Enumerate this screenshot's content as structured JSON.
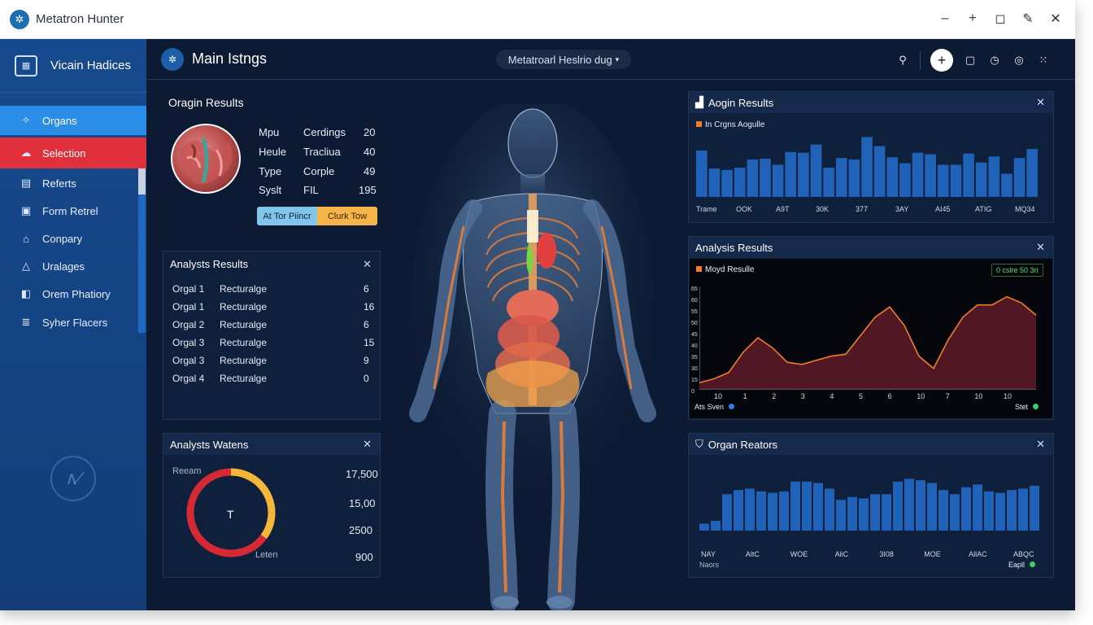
{
  "window": {
    "title": "Metatron Hunter"
  },
  "sidebar": {
    "header_label": "Vicain Hadices",
    "items": [
      {
        "label": "Organs",
        "icon": "organs-icon",
        "state": "active"
      },
      {
        "label": "Selection",
        "icon": "cloud-icon",
        "state": "selected"
      },
      {
        "label": "Referts",
        "icon": "document-icon",
        "state": ""
      },
      {
        "label": "Form Retrel",
        "icon": "form-icon",
        "state": ""
      },
      {
        "label": "Conpary",
        "icon": "company-icon",
        "state": ""
      },
      {
        "label": "Uralages",
        "icon": "bell-icon",
        "state": ""
      },
      {
        "label": "Orem Phatiory",
        "icon": "clipboard-icon",
        "state": ""
      },
      {
        "label": "Syher Flacers",
        "icon": "stack-icon",
        "state": ""
      }
    ]
  },
  "header": {
    "title": "Main Istngs",
    "dropdown_value": "Metatroarl Heslrio dug"
  },
  "organ_results": {
    "title": "Oragin Results",
    "rows": [
      {
        "a": "Mpu",
        "b": "Cerdings",
        "c": "20"
      },
      {
        "a": "Heule",
        "b": "Tracliua",
        "c": "40"
      },
      {
        "a": "Type",
        "b": "Corple",
        "c": "49"
      },
      {
        "a": "Syslt",
        "b": "FIL",
        "c": "195"
      }
    ],
    "button_a": "At Tor Piincr",
    "button_b": "Clurk Tow"
  },
  "analysis_results_left": {
    "title": "Analysts Results",
    "rows": [
      {
        "organ": "Orgal 1",
        "type": "Recturalge",
        "value": "6"
      },
      {
        "organ": "Orgal 1",
        "type": "Recturalge",
        "value": "16"
      },
      {
        "organ": "Orgal 2",
        "type": "Recturalge",
        "value": "6"
      },
      {
        "organ": "Orgal 3",
        "type": "Recturalge",
        "value": "15"
      },
      {
        "organ": "Orgal 3",
        "type": "Recturalge",
        "value": "9"
      },
      {
        "organ": "Orgal 4",
        "type": "Recturalge",
        "value": "0"
      }
    ]
  },
  "analysis_watens": {
    "title": "Analysts Watens",
    "top_label": "Reeam",
    "bottom_label": "Leten",
    "center": "T",
    "values": [
      "17,500",
      "15,00",
      "2500",
      "900"
    ],
    "gauge": {
      "yellow": 0.35,
      "red": 0.65
    }
  },
  "aogin_results": {
    "title": "Aogin Results",
    "legend": "In Crgns Aogulle",
    "x_labels": [
      "Trame",
      "OOK",
      "A9T",
      "30K",
      "377",
      "3AY",
      "AI45",
      "ATIG",
      "MQ34"
    ],
    "colors": {
      "bar": "#1f62b8"
    }
  },
  "analysis_results_right": {
    "title": "Analysis Results",
    "legend": "Moyd Resulle",
    "badge": "0 cslre 50 3ri",
    "y_labels": [
      "65",
      "60",
      "55",
      "50",
      "45",
      "40",
      "35",
      "30",
      "15",
      "0"
    ],
    "x_labels": [
      "10",
      "1",
      "2",
      "3",
      "4",
      "5",
      "6",
      "10",
      "7",
      "10",
      "10"
    ],
    "footer_left": "Ats Sven",
    "footer_right": "Stet"
  },
  "organ_reators": {
    "title": "Organ Reators",
    "x_labels": [
      "NAY",
      "AltC",
      "WOE",
      "AliC",
      "3I08",
      "MOE",
      "AllAC",
      "ABQC"
    ],
    "footer_left": "Naors",
    "footer_right": "Eapll"
  },
  "chart_data": [
    {
      "type": "bar",
      "title": "Aogin Results",
      "series": [
        {
          "name": "In Crgns Aogulle",
          "values": [
            62,
            38,
            36,
            39,
            50,
            51,
            43,
            60,
            59,
            70,
            39,
            52,
            50,
            80,
            68,
            53,
            45,
            59,
            57,
            43,
            43,
            58,
            46,
            54,
            31,
            52,
            64
          ]
        }
      ],
      "ylim": [
        0,
        100
      ]
    },
    {
      "type": "area",
      "title": "Analysis Results",
      "series": [
        {
          "name": "Moyd Resulle",
          "values": [
            6,
            10,
            16,
            36,
            50,
            40,
            26,
            24,
            28,
            32,
            34,
            52,
            70,
            80,
            62,
            32,
            20,
            48,
            70,
            82,
            82,
            90,
            84,
            72
          ]
        }
      ],
      "ylim": [
        0,
        100
      ]
    },
    {
      "type": "bar",
      "title": "Organ Reators",
      "series": [
        {
          "name": "",
          "values": [
            10,
            14,
            52,
            58,
            60,
            56,
            54,
            56,
            70,
            70,
            68,
            60,
            44,
            48,
            46,
            52,
            52,
            70,
            74,
            72,
            68,
            58,
            52,
            62,
            66,
            56,
            54,
            58,
            60,
            64
          ]
        }
      ],
      "ylim": [
        0,
        100
      ]
    }
  ]
}
